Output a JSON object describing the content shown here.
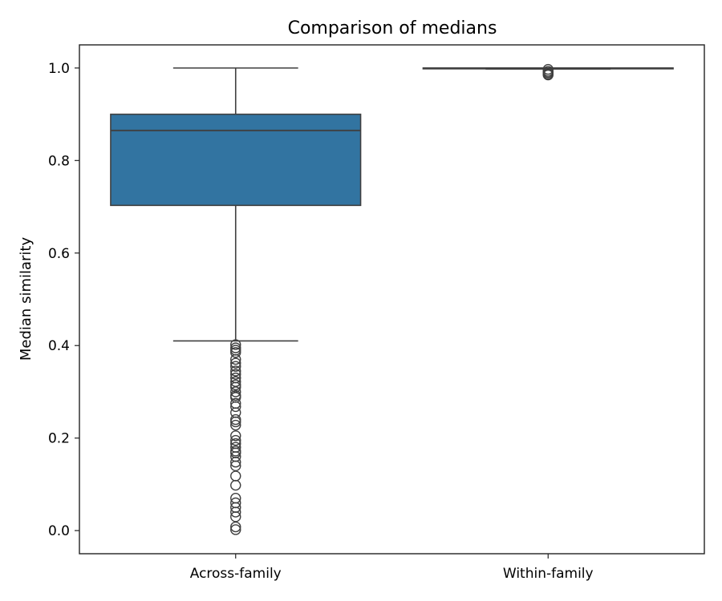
{
  "chart_data": {
    "type": "box",
    "title": "Comparison of medians",
    "xlabel": "",
    "ylabel": "Median similarity",
    "ylim": [
      -0.05,
      1.05
    ],
    "yticks": [
      0.0,
      0.2,
      0.4,
      0.6,
      0.8,
      1.0
    ],
    "ytick_labels": [
      "0.0",
      "0.2",
      "0.4",
      "0.6",
      "0.8",
      "1.0"
    ],
    "grid": false,
    "categories": [
      "Across-family",
      "Within-family"
    ],
    "boxes": [
      {
        "category": "Across-family",
        "color": "#3274a1",
        "whisker_low": 0.41,
        "q1": 0.703,
        "median": 0.865,
        "q3": 0.9,
        "whisker_high": 1.0,
        "outliers": [
          0.402,
          0.395,
          0.39,
          0.385,
          0.37,
          0.362,
          0.355,
          0.345,
          0.338,
          0.33,
          0.322,
          0.315,
          0.31,
          0.3,
          0.292,
          0.288,
          0.275,
          0.268,
          0.255,
          0.24,
          0.235,
          0.228,
          0.205,
          0.195,
          0.188,
          0.18,
          0.172,
          0.168,
          0.16,
          0.148,
          0.14,
          0.118,
          0.098,
          0.07,
          0.06,
          0.05,
          0.04,
          0.03,
          0.008,
          0.002
        ]
      },
      {
        "category": "Within-family",
        "color": "#3274a1",
        "whisker_low": 0.998,
        "q1": 0.9985,
        "median": 0.9995,
        "q3": 1.0,
        "whisker_high": 1.0,
        "outliers": [
          0.997,
          0.993,
          0.99,
          0.987,
          0.985
        ]
      }
    ]
  }
}
